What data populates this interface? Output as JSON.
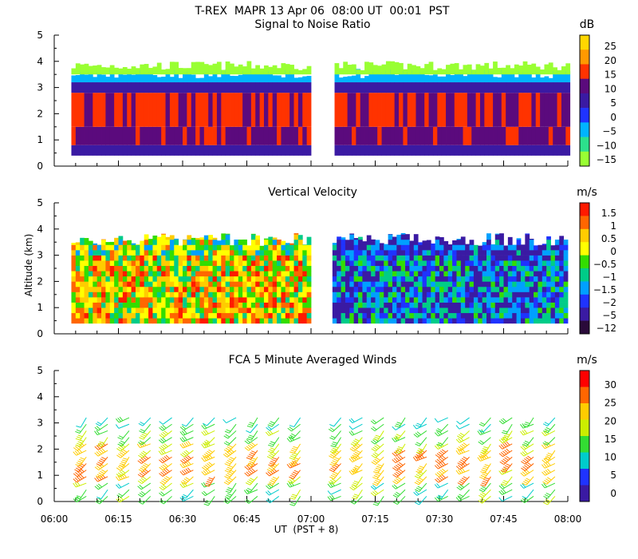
{
  "chart_data": {
    "type": "heatmap",
    "title": "T-REX  MAPR 13 Apr 06  08:00 UT  00:01  PST",
    "xlabel": "UT  (PST + 8)",
    "ylabel": "Altitude (km)",
    "x_ticks": [
      "06:00",
      "06:15",
      "06:30",
      "06:45",
      "07:00",
      "07:15",
      "07:30",
      "07:45",
      "08:00"
    ],
    "x_range_minutes": [
      0,
      120
    ],
    "y_ticks": [
      "0",
      "1",
      "2",
      "3",
      "4",
      "5"
    ],
    "ylim_km": [
      0,
      5
    ],
    "data_gap_minutes": [
      60,
      65
    ],
    "panels": [
      {
        "title": "Signal to Noise Ratio",
        "type": "heatmap",
        "units": "dB",
        "colorbar": {
          "ticks": [
            "25",
            "20",
            "15",
            "10",
            "5",
            "0",
            "−5",
            "−10",
            "−15"
          ],
          "colors": [
            "#ffd700",
            "#ff9900",
            "#ff3300",
            "#5b0a7d",
            "#3a1aa3",
            "#1f33ff",
            "#00b4ff",
            "#2ce08c",
            "#99ff33"
          ]
        },
        "altitude_layers_km": [
          {
            "from": 0.4,
            "to": 0.8,
            "snr_db": 5
          },
          {
            "from": 0.8,
            "to": 1.5,
            "snr_db": 12
          },
          {
            "from": 1.5,
            "to": 2.8,
            "snr_db": 16
          },
          {
            "from": 2.8,
            "to": 3.2,
            "snr_db": 5
          },
          {
            "from": 3.2,
            "to": 3.5,
            "snr_db": -5
          },
          {
            "from": 3.5,
            "to": 3.8,
            "snr_db": -12
          }
        ]
      },
      {
        "title": "Vertical Velocity",
        "type": "heatmap",
        "units": "m/s",
        "colorbar": {
          "ticks": [
            "1.5",
            "1",
            "0.5",
            "0",
            "−0.5",
            "−1",
            "−1.5",
            "−2",
            "−5",
            "−12"
          ],
          "colors": [
            "#ff1a00",
            "#ff6600",
            "#ffcc00",
            "#ffff00",
            "#33dd00",
            "#00cc88",
            "#00a0ff",
            "#1f33ff",
            "#3a1aa3",
            "#2a0a3a"
          ]
        },
        "segments": [
          {
            "from_min": 0,
            "to_min": 60,
            "mean_w_ms": 0.5,
            "top_km": 3.6
          },
          {
            "from_min": 65,
            "to_min": 120,
            "mean_w_ms": -1.5,
            "top_km": 3.6
          }
        ]
      },
      {
        "title": "FCA 5 Minute Averaged Winds",
        "type": "wind-barbs",
        "units": "m/s",
        "colorbar": {
          "ticks": [
            "30",
            "25",
            "20",
            "15",
            "10",
            "5",
            "0"
          ],
          "colors": [
            "#ff0000",
            "#ff6600",
            "#ffcc00",
            "#ccee00",
            "#33dd33",
            "#00cccc",
            "#1f33ff",
            "#3a1aa3"
          ]
        },
        "barb_profile": [
          {
            "alt_km": 0.5,
            "speed_ms": 12
          },
          {
            "alt_km": 1.0,
            "speed_ms": 22
          },
          {
            "alt_km": 1.5,
            "speed_ms": 25
          },
          {
            "alt_km": 2.0,
            "speed_ms": 22
          },
          {
            "alt_km": 2.5,
            "speed_ms": 15
          },
          {
            "alt_km": 3.0,
            "speed_ms": 10
          }
        ]
      }
    ]
  }
}
